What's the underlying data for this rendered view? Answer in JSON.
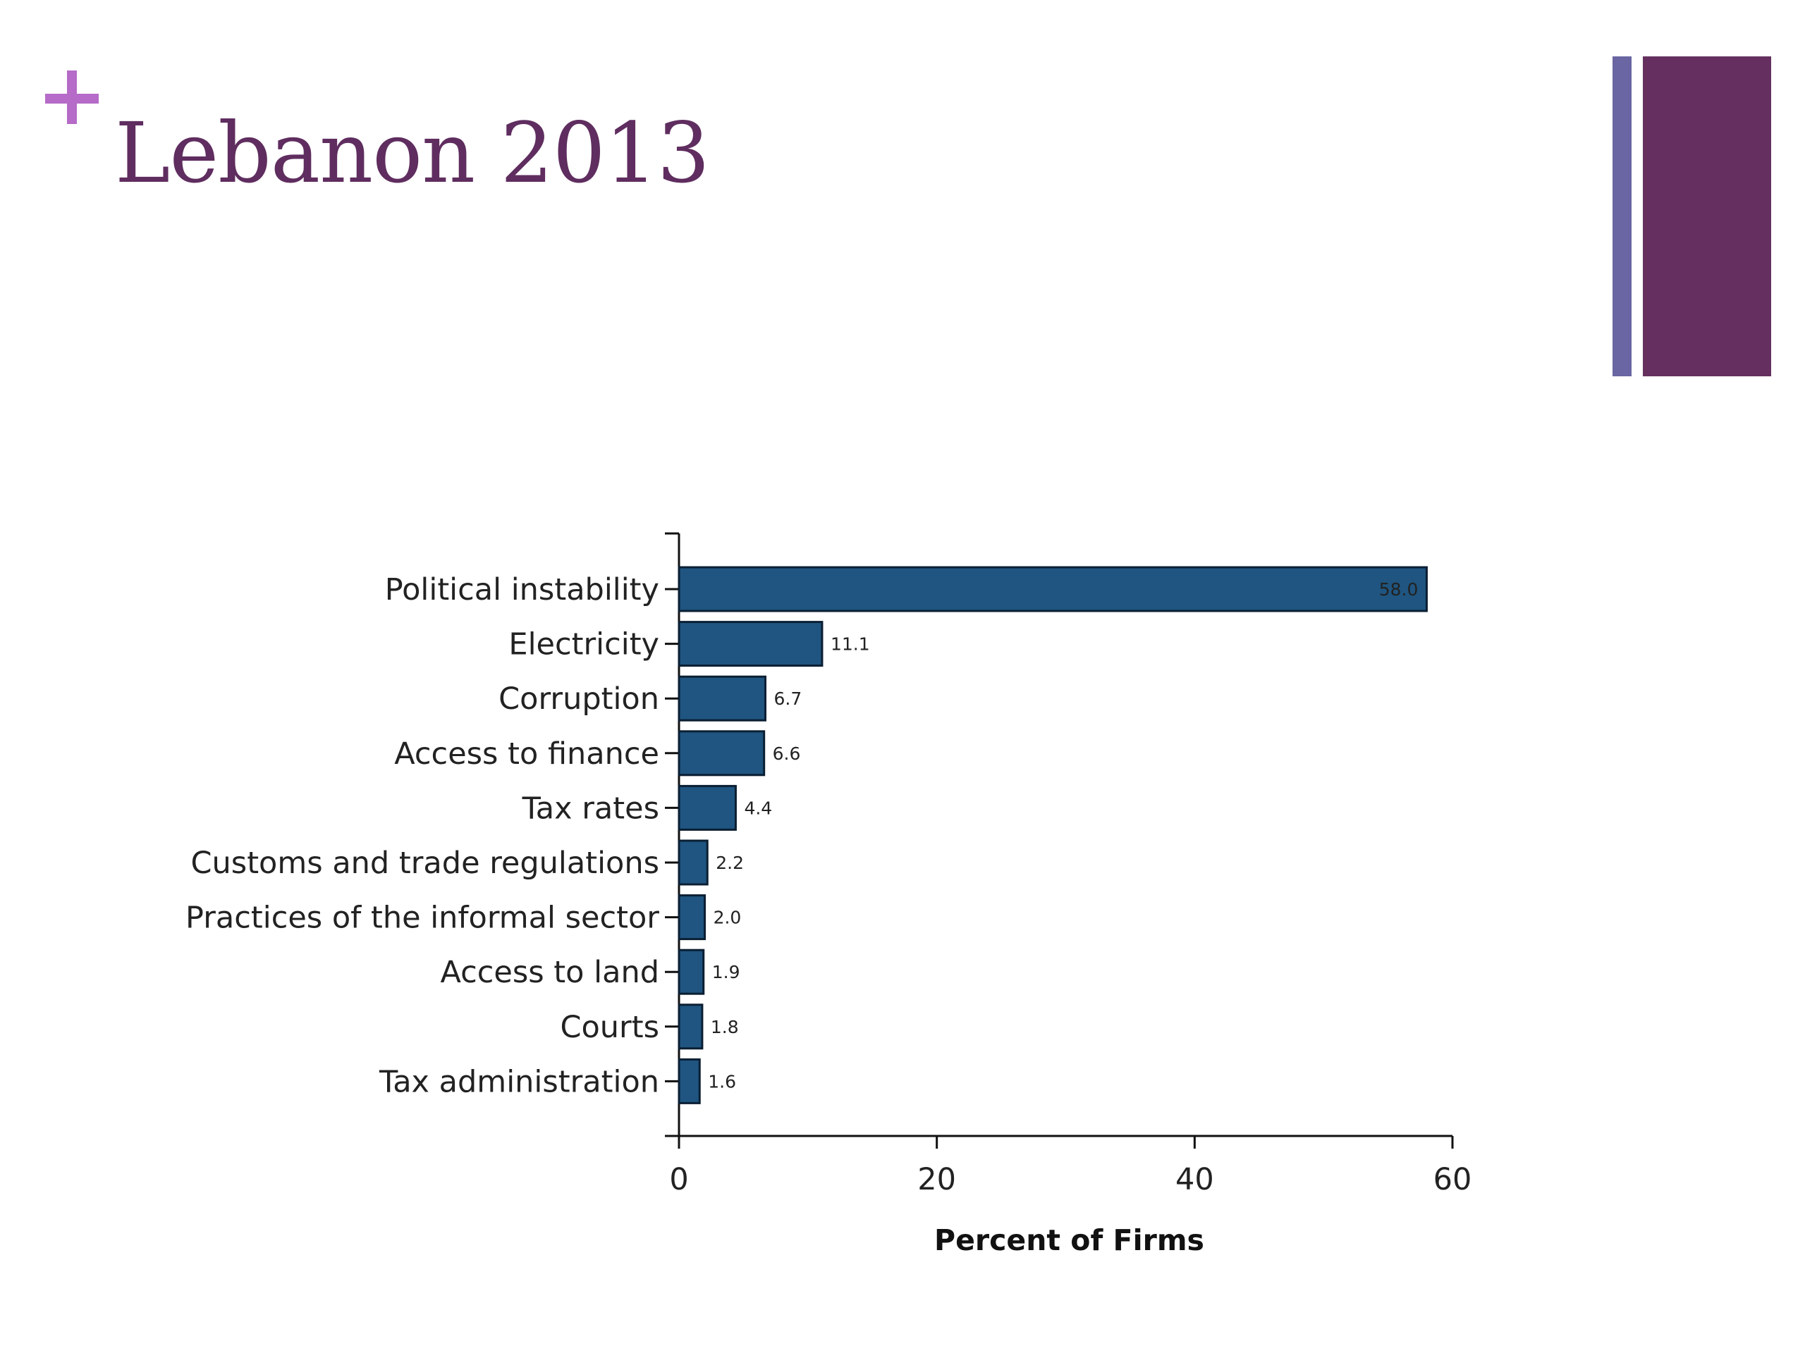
{
  "slide": {
    "title": "Lebanon 2013"
  },
  "colors": {
    "title": "#5f2d5f",
    "plus": "#b56bc7",
    "accent_thin": "#6a66a3",
    "accent_thick": "#65305f",
    "bar_fill": "#1f5580",
    "bar_stroke": "#0b1f33"
  },
  "chart_data": {
    "type": "bar",
    "orientation": "horizontal",
    "categories": [
      "Political instability",
      "Electricity",
      "Corruption",
      "Access to finance",
      "Tax rates",
      "Customs and trade regulations",
      "Practices of the informal sector",
      "Access to land",
      "Courts",
      "Tax administration"
    ],
    "values": [
      58.0,
      11.1,
      6.7,
      6.6,
      4.4,
      2.2,
      2.0,
      1.9,
      1.8,
      1.6
    ],
    "value_labels": [
      "58.0",
      "11.1",
      "6.7",
      "6.6",
      "4.4",
      "2.2",
      "2.0",
      "1.9",
      "1.8",
      "1.6"
    ],
    "xlabel": "Percent of Firms",
    "ylabel": "",
    "xlim": [
      0,
      60
    ],
    "xticks": [
      0,
      20,
      40,
      60
    ],
    "xtick_labels": [
      "0",
      "20",
      "40",
      "60"
    ],
    "grid": false,
    "legend": "none"
  }
}
